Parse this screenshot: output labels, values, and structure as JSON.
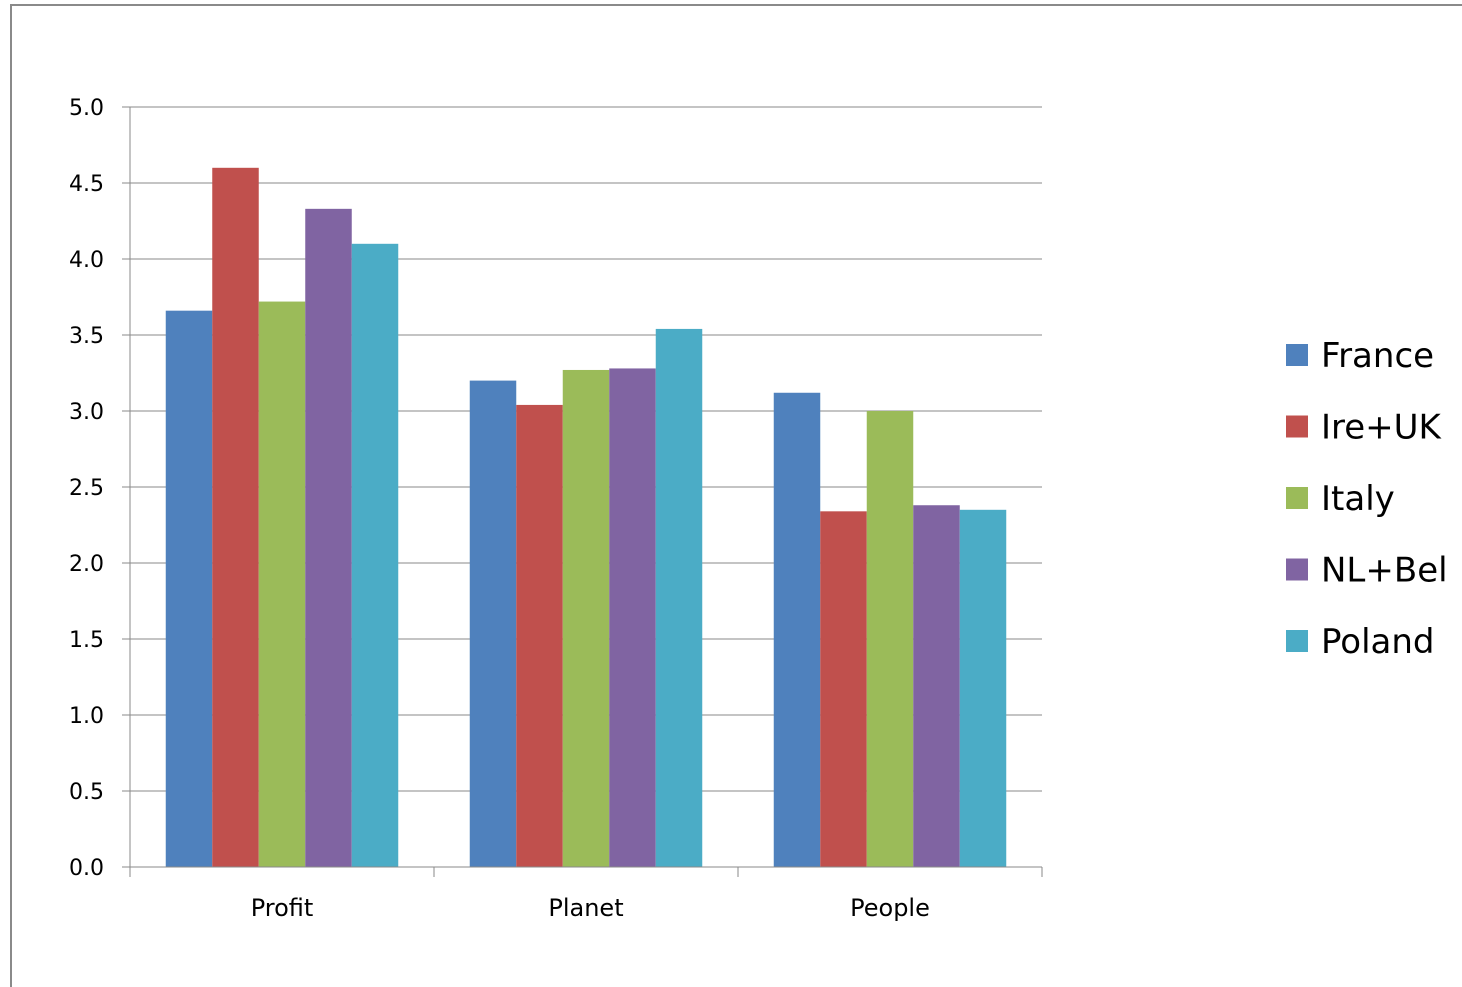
{
  "chart_data": {
    "type": "bar",
    "title": "",
    "xlabel": "",
    "ylabel": "",
    "categories": [
      "Profit",
      "Planet",
      "People"
    ],
    "series": [
      {
        "name": "France",
        "color": "#4F81BD",
        "values": [
          3.66,
          3.2,
          3.12
        ]
      },
      {
        "name": "Ire+UK",
        "color": "#C0504D",
        "values": [
          4.6,
          3.04,
          2.34
        ]
      },
      {
        "name": "Italy",
        "color": "#9BBB59",
        "values": [
          3.72,
          3.27,
          3.0
        ]
      },
      {
        "name": "NL+Bel",
        "color": "#8064A2",
        "values": [
          4.33,
          3.28,
          2.38
        ]
      },
      {
        "name": "Poland",
        "color": "#4BACC6",
        "values": [
          4.1,
          3.54,
          2.35
        ]
      }
    ],
    "ylim": [
      0,
      5
    ],
    "yticks": [
      "0.0",
      "0.5",
      "1.0",
      "1.5",
      "2.0",
      "2.5",
      "3.0",
      "3.5",
      "4.0",
      "4.5",
      "5.0"
    ],
    "grid": true,
    "legend_position": "right"
  }
}
